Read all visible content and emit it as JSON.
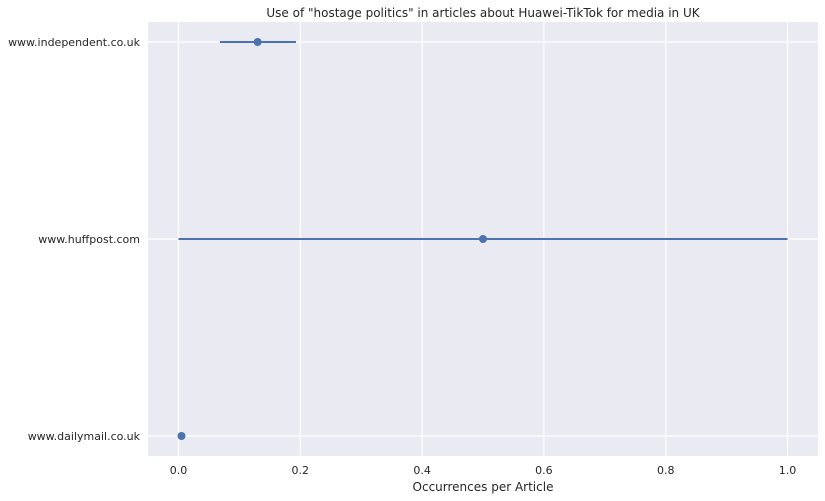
{
  "chart_data": {
    "type": "scatter",
    "title": "Use of \"hostage politics\" in articles about Huawei-TikTok for media in UK",
    "xlabel": "Occurrences per Article",
    "ylabel": "",
    "xlim": [
      -0.05,
      1.05
    ],
    "xticks": [
      0.0,
      0.2,
      0.4,
      0.6,
      0.8,
      1.0
    ],
    "xtick_labels": [
      "0.0",
      "0.2",
      "0.4",
      "0.6",
      "0.8",
      "1.0"
    ],
    "grid": true,
    "background": "#eaeaf2",
    "color": "#4c72b0",
    "categories": [
      "www.independent.co.uk",
      "www.huffpost.com",
      "www.dailymail.co.uk"
    ],
    "points": [
      {
        "label": "www.independent.co.uk",
        "value": 0.13,
        "ci_low": 0.068,
        "ci_high": 0.193
      },
      {
        "label": "www.huffpost.com",
        "value": 0.5,
        "ci_low": 0.0,
        "ci_high": 1.0
      },
      {
        "label": "www.dailymail.co.uk",
        "value": 0.005,
        "ci_low": 0.0,
        "ci_high": 0.01
      }
    ]
  }
}
